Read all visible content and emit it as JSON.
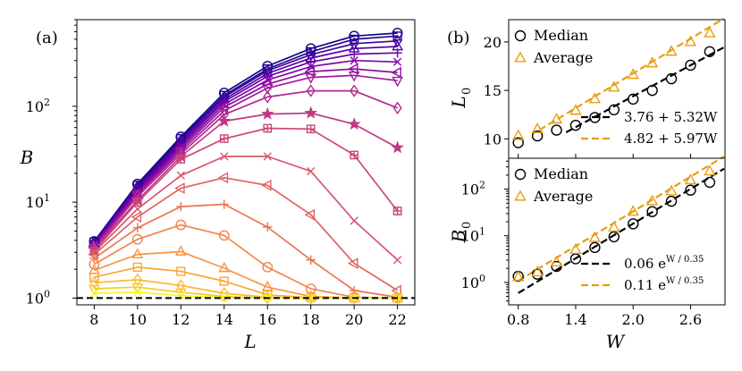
{
  "chart_data": [
    {
      "panel": "(a)",
      "type": "line",
      "xlabel": "L",
      "ylabel": "B",
      "yscale": "log",
      "xlim": [
        7.2,
        22.8
      ],
      "ylim": [
        0.85,
        800
      ],
      "xticks": [
        8,
        10,
        12,
        14,
        16,
        18,
        20,
        22
      ],
      "xtick_labels": [
        "8",
        "10",
        "12",
        "14",
        "16",
        "18",
        "20",
        "22"
      ],
      "yticks": [
        1,
        10,
        100
      ],
      "ytick_labels": [
        "10",
        "10",
        "10"
      ],
      "ytick_exponents": [
        "0",
        "1",
        "2"
      ],
      "reference_line": {
        "y": 1,
        "style": "dashed",
        "color": "#000000"
      },
      "x": [
        8,
        10,
        12,
        14,
        16,
        18,
        20,
        22
      ],
      "series": [
        {
          "marker": "circle",
          "color": "#0d0887",
          "values": [
            3.9,
            15.5,
            48,
            138,
            262,
            400,
            540,
            580
          ]
        },
        {
          "marker": "square",
          "color": "#2a0593",
          "values": [
            3.85,
            15,
            46,
            130,
            245,
            370,
            500,
            540
          ]
        },
        {
          "marker": "diamond",
          "color": "#41049d",
          "values": [
            3.8,
            14.5,
            44,
            125,
            235,
            345,
            450,
            480
          ]
        },
        {
          "marker": "triangle-up",
          "color": "#5601a4",
          "values": [
            3.7,
            14,
            42,
            118,
            220,
            318,
            400,
            420
          ]
        },
        {
          "marker": "plus",
          "color": "#6a00a8",
          "values": [
            3.65,
            13.5,
            40,
            112,
            205,
            290,
            350,
            360
          ]
        },
        {
          "marker": "x",
          "color": "#7e03a8",
          "values": [
            3.6,
            13,
            38,
            105,
            188,
            260,
            300,
            290
          ]
        },
        {
          "marker": "triangle-left",
          "color": "#8f0da4",
          "values": [
            3.5,
            12.5,
            36,
            98,
            170,
            230,
            245,
            225
          ]
        },
        {
          "marker": "triangle-down",
          "color": "#a01a9c",
          "values": [
            3.4,
            12,
            34,
            90,
            155,
            200,
            210,
            185
          ]
        },
        {
          "marker": "diamond",
          "color": "#b12a90",
          "values": [
            3.3,
            11.5,
            32,
            82,
            125,
            145,
            145,
            96
          ]
        },
        {
          "marker": "star",
          "color": "#bf3984",
          "values": [
            3.2,
            10.5,
            30,
            70,
            83,
            85,
            65,
            37
          ]
        },
        {
          "marker": "plus-square",
          "color": "#cc4778",
          "values": [
            3.1,
            10,
            28,
            46,
            59,
            58,
            31,
            8.1
          ]
        },
        {
          "marker": "x",
          "color": "#d8576b",
          "values": [
            3.0,
            8.5,
            19,
            30,
            30,
            21,
            6.4,
            2.5
          ]
        },
        {
          "marker": "triangle-left",
          "color": "#e16462",
          "values": [
            2.85,
            7,
            14,
            18,
            15,
            7.4,
            2.3,
            1.2
          ]
        },
        {
          "marker": "plus",
          "color": "#ea7457",
          "values": [
            2.6,
            5.4,
            9,
            9.5,
            5.5,
            2.5,
            1.2,
            1.02
          ]
        },
        {
          "marker": "circle",
          "color": "#f2844b",
          "values": [
            2.25,
            4.1,
            5.8,
            4.5,
            2.1,
            1.25,
            1.02,
            1.0
          ]
        },
        {
          "marker": "triangle-up",
          "color": "#f89540",
          "values": [
            1.95,
            2.85,
            3.05,
            2.05,
            1.3,
            1.04,
            1.0,
            1.0
          ]
        },
        {
          "marker": "square",
          "color": "#fca636",
          "values": [
            1.65,
            2.1,
            1.9,
            1.5,
            1.08,
            1.01,
            1.0,
            1.0
          ]
        },
        {
          "marker": "diamond",
          "color": "#fdb92f",
          "values": [
            1.45,
            1.55,
            1.35,
            1.12,
            1.02,
            1.0,
            1.0,
            1.0
          ]
        },
        {
          "marker": "triangle-down",
          "color": "#f8ca28",
          "values": [
            1.25,
            1.3,
            1.15,
            1.04,
            1.0,
            1.0,
            1.0,
            1.0
          ]
        },
        {
          "marker": "x",
          "color": "#f0f921",
          "values": [
            1.12,
            1.15,
            1.06,
            1.01,
            1.0,
            1.0,
            1.0,
            1.0
          ]
        }
      ]
    },
    {
      "panel": "(b)",
      "type": "scatter",
      "xlabel": "W",
      "ylabel": "L",
      "ylabel_sub": "0",
      "ylim": [
        8,
        22.3
      ],
      "yticks": [
        10,
        15,
        20
      ],
      "ytick_labels": [
        "10",
        "15",
        "20"
      ],
      "xticks": [
        0.8,
        1.4,
        2.0,
        2.6
      ],
      "x": [
        0.8,
        1.0,
        1.2,
        1.4,
        1.6,
        1.8,
        2.0,
        2.2,
        2.4,
        2.6,
        2.8
      ],
      "series": [
        {
          "name": "Median",
          "marker": "circle",
          "color": "#000000",
          "values": [
            9.6,
            10.3,
            10.9,
            11.4,
            12.2,
            13.0,
            14.1,
            15.0,
            16.2,
            17.6,
            19.0
          ]
        },
        {
          "name": "Average",
          "marker": "triangle-up",
          "color": "#e69e12",
          "values": [
            10.3,
            11.0,
            12.0,
            12.9,
            14.1,
            15.3,
            16.6,
            17.8,
            19.0,
            20.0,
            20.9
          ]
        }
      ],
      "fits": [
        {
          "label": "3.76 + 5.32W",
          "color": "#000000",
          "intercept": 3.76,
          "slope": 5.32,
          "x_range": [
            1.3,
            2.95
          ]
        },
        {
          "label": "4.82 + 5.97W",
          "color": "#e69e12",
          "intercept": 4.82,
          "slope": 5.97,
          "x_range": [
            1.02,
            2.95
          ]
        }
      ],
      "legend": {
        "placement": "upper-left",
        "entries": [
          "Median",
          "Average"
        ]
      },
      "fit_legend_placement": "lower-right"
    },
    {
      "panel": "(b-lower)",
      "type": "scatter",
      "xlabel": "W",
      "ylabel": "B",
      "ylabel_sub": "0",
      "yscale": "log",
      "xlim": [
        0.7,
        2.96
      ],
      "ylim": [
        0.33,
        460
      ],
      "xticks": [
        0.8,
        1.4,
        2.0,
        2.6
      ],
      "xtick_labels": [
        "0.8",
        "1.4",
        "2.0",
        "2.6"
      ],
      "yticks": [
        1,
        10,
        100
      ],
      "ytick_labels": [
        "10",
        "10",
        "10"
      ],
      "ytick_exponents": [
        "0",
        "1",
        "2"
      ],
      "x": [
        0.8,
        1.0,
        1.2,
        1.4,
        1.6,
        1.8,
        2.0,
        2.2,
        2.4,
        2.6,
        2.8
      ],
      "series": [
        {
          "name": "Median",
          "marker": "circle",
          "color": "#000000",
          "values": [
            1.35,
            1.5,
            2.2,
            3.2,
            5.6,
            9.5,
            18,
            33,
            55,
            95,
            140
          ]
        },
        {
          "name": "Average",
          "marker": "triangle-up",
          "color": "#e69e12",
          "values": [
            1.3,
            1.65,
            2.7,
            5.0,
            9.0,
            15,
            33,
            55,
            90,
            155,
            240
          ]
        }
      ],
      "fits": [
        {
          "label": "0.06 e",
          "exponent": "W / 0.35",
          "color": "#000000",
          "prefactor": 0.06,
          "scale": 0.35,
          "x_range": [
            0.8,
            2.95
          ]
        },
        {
          "label": "0.11 e",
          "exponent": "W / 0.35",
          "color": "#e69e12",
          "prefactor": 0.11,
          "scale": 0.35,
          "x_range": [
            0.8,
            2.95
          ]
        }
      ],
      "legend": {
        "placement": "upper-left",
        "entries": [
          "Median",
          "Average"
        ]
      },
      "fit_legend_placement": "lower-right"
    }
  ]
}
